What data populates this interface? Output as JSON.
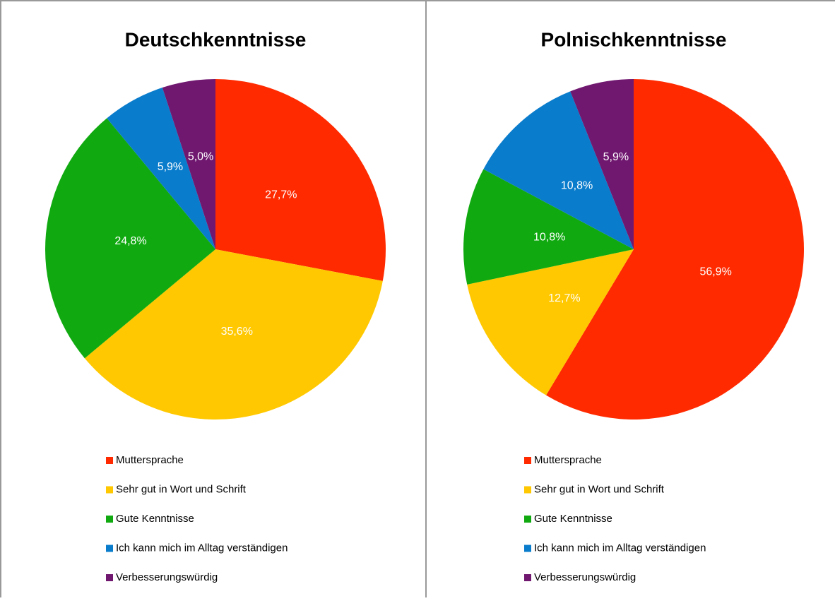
{
  "chart_data": [
    {
      "type": "pie",
      "title": "Deutschkenntnisse",
      "categories": [
        "Muttersprache",
        "Sehr gut in Wort und Schrift",
        "Gute Kenntnisse",
        "Ich kann mich im Alltag verständigen",
        "Verbesserungswürdig"
      ],
      "values": [
        27.7,
        35.6,
        24.8,
        5.9,
        5.0
      ],
      "value_labels": [
        "27,7%",
        "35,6%",
        "24,8%",
        "5,9%",
        "5,0%"
      ],
      "colors": [
        "#ff2a00",
        "#ffc800",
        "#10aa10",
        "#0a7ccc",
        "#701870"
      ]
    },
    {
      "type": "pie",
      "title": "Polnischkenntnisse",
      "categories": [
        "Muttersprache",
        "Sehr gut in Wort und Schrift",
        "Gute Kenntnisse",
        "Ich kann mich im Alltag verständigen",
        "Verbesserungswürdig"
      ],
      "values": [
        56.9,
        12.7,
        10.8,
        10.8,
        5.9
      ],
      "value_labels": [
        "56,9%",
        "12,7%",
        "10,8%",
        "10,8%",
        "5,9%"
      ],
      "colors": [
        "#ff2a00",
        "#ffc800",
        "#10aa10",
        "#0a7ccc",
        "#701870"
      ]
    }
  ]
}
